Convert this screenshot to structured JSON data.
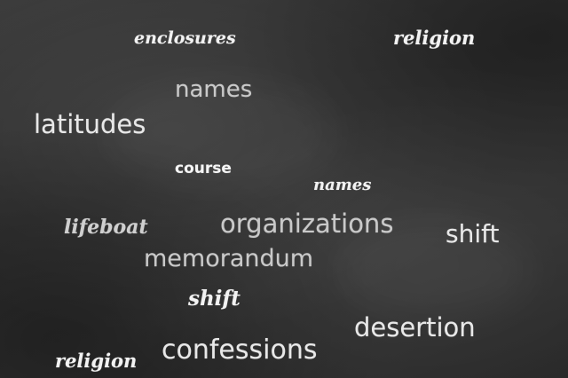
{
  "words": {
    "enclosures": "enclosures",
    "religion_top": "religion",
    "names_upper": "names",
    "latitudes": "latitudes",
    "course": "course",
    "names_script": "names",
    "lifeboat": "lifeboat",
    "organizations": "organizations",
    "shift_right": "shift",
    "memorandum": "memorandum",
    "shift_script": "shift",
    "desertion": "desertion",
    "confessions": "confessions",
    "religion_bottom": "religion"
  }
}
